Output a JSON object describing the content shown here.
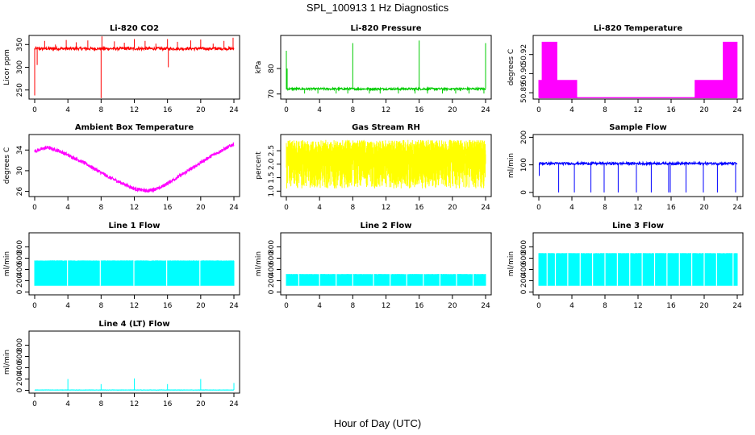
{
  "title": "SPL_100913  1 Hz Diagnostics",
  "xlabel": "Hour of Day (UTC)",
  "chart_data": [
    {
      "type": "line",
      "title": "Li-820 CO2",
      "ylabel": "Licor ppm",
      "color": "#ff0000",
      "ylim": [
        230,
        370
      ],
      "yticks": [
        "250",
        "300",
        "350"
      ],
      "ytick_values": [
        250,
        300,
        350
      ],
      "xlim": [
        0,
        24
      ],
      "xticks": [
        "0",
        "4",
        "8",
        "12",
        "16",
        "20",
        "24"
      ],
      "baseline": 341,
      "noise": 3,
      "spikes": [
        [
          0,
          238
        ],
        [
          0.3,
          305
        ],
        [
          1.2,
          358
        ],
        [
          2.5,
          350
        ],
        [
          3.8,
          360
        ],
        [
          5.0,
          355
        ],
        [
          6.4,
          359
        ],
        [
          8.0,
          232
        ],
        [
          8.1,
          368
        ],
        [
          9.6,
          357
        ],
        [
          10.8,
          354
        ],
        [
          12.0,
          362
        ],
        [
          13.3,
          358
        ],
        [
          14.6,
          352
        ],
        [
          16.0,
          362
        ],
        [
          16.1,
          300
        ],
        [
          17.2,
          356
        ],
        [
          18.8,
          359
        ],
        [
          20.0,
          361
        ],
        [
          21.5,
          352
        ],
        [
          22.8,
          358
        ],
        [
          23.9,
          365
        ]
      ]
    },
    {
      "type": "line",
      "title": "Li-820 Pressure",
      "ylabel": "kPa",
      "color": "#00cc00",
      "ylim": [
        68,
        93
      ],
      "yticks": [
        "70",
        "80"
      ],
      "ytick_values": [
        70,
        80
      ],
      "xlim": [
        0,
        24
      ],
      "xticks": [
        "0",
        "4",
        "8",
        "12",
        "16",
        "20",
        "24"
      ],
      "baseline": 72,
      "noise": 0.4,
      "spikes": [
        [
          0,
          87
        ],
        [
          0.1,
          80
        ],
        [
          2.2,
          70.2
        ],
        [
          3.8,
          70.2
        ],
        [
          6.0,
          70.2
        ],
        [
          7.4,
          70.2
        ],
        [
          8.0,
          90
        ],
        [
          10.0,
          70.2
        ],
        [
          11.3,
          70.2
        ],
        [
          13.5,
          70.2
        ],
        [
          15.5,
          70.2
        ],
        [
          16.0,
          91
        ],
        [
          17.0,
          70.2
        ],
        [
          18.8,
          70.2
        ],
        [
          20.4,
          70.2
        ],
        [
          22.0,
          70.2
        ],
        [
          23.8,
          70.2
        ],
        [
          24.0,
          90
        ]
      ]
    },
    {
      "type": "line",
      "title": "Li-820 Temperature",
      "ylabel": "degrees C",
      "color": "#ff00ff",
      "ylim": [
        50.885,
        50.935
      ],
      "yticks": [
        "50.89",
        "50.90",
        "50.92"
      ],
      "ytick_values": [
        50.89,
        50.905,
        50.92
      ],
      "xlim": [
        0,
        24
      ],
      "xticks": [
        "0",
        "4",
        "8",
        "12",
        "16",
        "20",
        "24"
      ],
      "baseline": 50.886,
      "noise": 0,
      "bands": [
        [
          0.0,
          4.6,
          50.886,
          50.9
        ],
        [
          0.4,
          2.2,
          50.886,
          50.93
        ],
        [
          18.9,
          22.8,
          50.886,
          50.9
        ],
        [
          22.3,
          24.0,
          50.886,
          50.93
        ]
      ]
    },
    {
      "type": "line",
      "title": "Ambient Box Temperature",
      "ylabel": "degrees C",
      "color": "#ff00ff",
      "ylim": [
        25,
        37
      ],
      "yticks": [
        "26",
        "30",
        "34"
      ],
      "ytick_values": [
        26,
        30,
        34
      ],
      "xlim": [
        0,
        24
      ],
      "xticks": [
        "0",
        "4",
        "8",
        "12",
        "16",
        "20",
        "24"
      ],
      "noise": 0.35,
      "curve": [
        [
          0,
          33.8
        ],
        [
          1.5,
          34.5
        ],
        [
          3,
          33.8
        ],
        [
          6,
          31.5
        ],
        [
          9,
          28.7
        ],
        [
          12,
          26.5
        ],
        [
          13.5,
          26.1
        ],
        [
          15,
          26.6
        ],
        [
          18,
          29.5
        ],
        [
          21,
          32.6
        ],
        [
          24,
          35.2
        ]
      ]
    },
    {
      "type": "line",
      "title": "Gas Stream RH",
      "ylabel": "percent",
      "color": "#ffff00",
      "ylim": [
        0.8,
        3.1
      ],
      "yticks": [
        "1.0",
        "1.5",
        "2.0",
        "2.5"
      ],
      "ytick_values": [
        1.0,
        1.5,
        2.0,
        2.5
      ],
      "xlim": [
        0,
        24
      ],
      "xticks": [
        "0",
        "4",
        "8",
        "12",
        "16",
        "20",
        "24"
      ],
      "bandLow": 1.1,
      "bandHigh": 2.9
    },
    {
      "type": "line",
      "title": "Sample Flow",
      "ylabel": "ml/min",
      "color": "#0000ff",
      "ylim": [
        -15,
        210
      ],
      "yticks": [
        "0",
        "100",
        "200"
      ],
      "ytick_values": [
        0,
        100,
        200
      ],
      "xlim": [
        0,
        24
      ],
      "xticks": [
        "0",
        "4",
        "8",
        "12",
        "16",
        "20",
        "24"
      ],
      "baseline": 105,
      "noise": 4,
      "spikes": [
        [
          0.05,
          60
        ],
        [
          2.4,
          0
        ],
        [
          4.3,
          0
        ],
        [
          6.3,
          0
        ],
        [
          7.9,
          0
        ],
        [
          9.6,
          0
        ],
        [
          11.8,
          0
        ],
        [
          13.6,
          0
        ],
        [
          15.7,
          0
        ],
        [
          15.9,
          0
        ],
        [
          17.8,
          0
        ],
        [
          19.9,
          0
        ],
        [
          21.6,
          0
        ],
        [
          23.8,
          0
        ]
      ]
    },
    {
      "type": "line",
      "title": "Line 1 Flow",
      "ylabel": "ml/min",
      "color": "#00ffff",
      "ylim": [
        -50,
        1050
      ],
      "yticks": [
        "0",
        "200",
        "400",
        "600",
        "800"
      ],
      "ytick_values": [
        0,
        200,
        400,
        600,
        800
      ],
      "xlim": [
        0,
        24
      ],
      "xticks": [
        "0",
        "4",
        "8",
        "12",
        "16",
        "20",
        "24"
      ],
      "bandLow": 110,
      "bandHigh": 560,
      "gaps": [
        3.95,
        7.9,
        11.95,
        15.9,
        19.9
      ]
    },
    {
      "type": "line",
      "title": "Line 2 Flow",
      "ylabel": "ml/min",
      "color": "#00ffff",
      "ylim": [
        -50,
        1050
      ],
      "yticks": [
        "0",
        "200",
        "400",
        "600",
        "800"
      ],
      "ytick_values": [
        0,
        200,
        400,
        600,
        800
      ],
      "xlim": [
        0,
        24
      ],
      "xticks": [
        "0",
        "4",
        "8",
        "12",
        "16",
        "20",
        "24"
      ],
      "bandLow": 110,
      "bandHigh": 320,
      "gaps": [
        1.5,
        4.0,
        6.0,
        8.0,
        10.5,
        12.5,
        14.5,
        16.5,
        18.5,
        20.5,
        22.5
      ]
    },
    {
      "type": "line",
      "title": "Line 3 Flow",
      "ylabel": "ml/min",
      "color": "#00ffff",
      "ylim": [
        -50,
        1050
      ],
      "yticks": [
        "0",
        "200",
        "400",
        "600",
        "800"
      ],
      "ytick_values": [
        0,
        200,
        400,
        600,
        800
      ],
      "xlim": [
        0,
        24
      ],
      "xticks": [
        "0",
        "4",
        "8",
        "12",
        "16",
        "20",
        "24"
      ],
      "bandLow": 110,
      "bandHigh": 690,
      "gaps": [
        1.0,
        2.0,
        3.5,
        5.0,
        6.5,
        8.0,
        9.5,
        11.0,
        12.5,
        14.0,
        15.5,
        17.0,
        18.5,
        20.0,
        21.5,
        23.5
      ]
    },
    {
      "type": "line",
      "title": "Line 4 (LT) Flow",
      "ylabel": "ml/min",
      "color": "#00ffff",
      "ylim": [
        -50,
        1050
      ],
      "yticks": [
        "0",
        "200",
        "400",
        "600",
        "800"
      ],
      "ytick_values": [
        0,
        200,
        400,
        600,
        800
      ],
      "xlim": [
        0,
        24
      ],
      "xticks": [
        "0",
        "4",
        "8",
        "12",
        "16",
        "20",
        "24"
      ],
      "baseline": 5,
      "noise": 2,
      "spikes": [
        [
          4.0,
          200
        ],
        [
          8.0,
          110
        ],
        [
          12.0,
          210
        ],
        [
          16.0,
          110
        ],
        [
          20.0,
          200
        ],
        [
          24.0,
          130
        ]
      ]
    }
  ]
}
